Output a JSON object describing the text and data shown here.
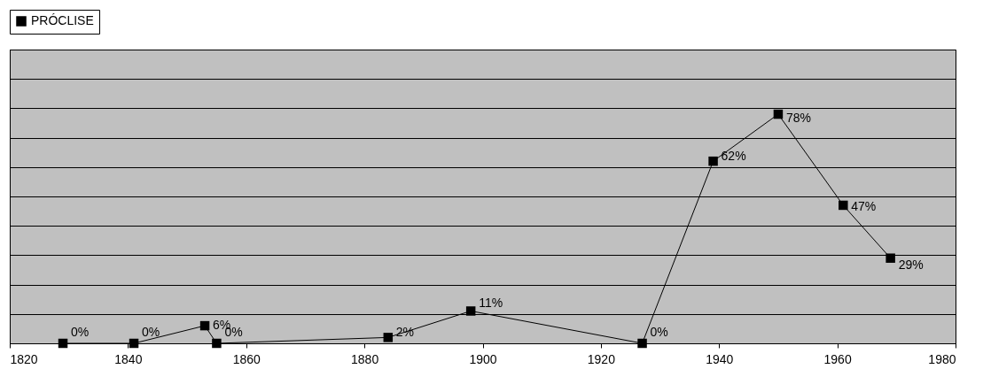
{
  "chart_data": {
    "type": "line",
    "x": [
      1829,
      1841,
      1853,
      1855,
      1884,
      1898,
      1927,
      1939,
      1950,
      1961,
      1969
    ],
    "series": [
      {
        "name": "PRÓCLISE",
        "color": "#000000",
        "values": [
          0,
          0,
          6,
          0,
          2,
          11,
          0,
          62,
          78,
          47,
          29
        ],
        "value_labels": [
          "0%",
          "0%",
          "6%",
          "0%",
          "2%",
          "11%",
          "0%",
          "62%",
          "78%",
          "47%",
          "29%"
        ]
      }
    ],
    "xlim": [
      1820,
      1980
    ],
    "xticks": [
      1820,
      1840,
      1860,
      1880,
      1900,
      1920,
      1940,
      1960,
      1980
    ],
    "ylim": [
      0,
      100
    ],
    "yticks": [
      0,
      10,
      20,
      30,
      40,
      50,
      60,
      70,
      80,
      90,
      100
    ],
    "tick_labels": "x",
    "grid": "y",
    "legend": "top",
    "marker": "square",
    "line_style": "solid"
  }
}
